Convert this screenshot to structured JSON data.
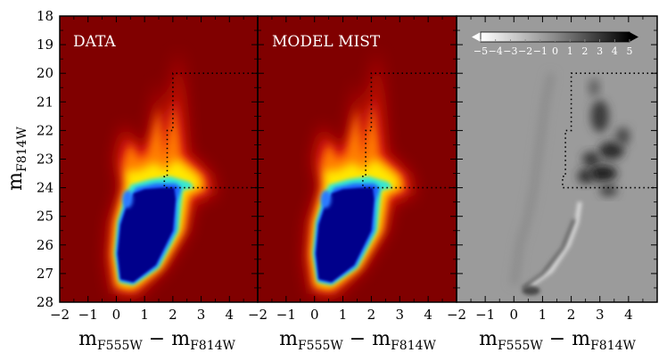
{
  "chart_data": {
    "type": "heatmap",
    "panels": [
      {
        "id": "data",
        "label": "DATA",
        "colormap": "jet"
      },
      {
        "id": "model",
        "label": "MODEL MIST",
        "colormap": "jet"
      },
      {
        "id": "residual",
        "label": "",
        "colormap": "gray_r"
      }
    ],
    "xlabel": {
      "main": "m",
      "sub": "F555W",
      "minus": "−",
      "main2": "m",
      "sub2": "F814W"
    },
    "ylabel": {
      "main": "m",
      "sub": "F814W"
    },
    "xlim": [
      -2,
      5
    ],
    "ylim": [
      28,
      18
    ],
    "xticks": [
      -2,
      -1,
      0,
      1,
      2,
      3,
      4
    ],
    "xtick_labels": [
      "−2",
      "−1",
      "0",
      "1",
      "2",
      "3",
      "4"
    ],
    "yticks": [
      18,
      19,
      20,
      21,
      22,
      23,
      24,
      25,
      26,
      27,
      28
    ],
    "ytick_labels": [
      "18",
      "19",
      "20",
      "21",
      "22",
      "23",
      "24",
      "25",
      "26",
      "27",
      "28"
    ],
    "colorbar": {
      "ticks": [
        -5,
        -4,
        -3,
        -2,
        -1,
        0,
        1,
        2,
        3,
        4,
        5
      ],
      "tick_labels": [
        "−5",
        "−4",
        "−3",
        "−2",
        "−1",
        "0",
        "1",
        "2",
        "3",
        "4",
        "5"
      ],
      "range": [
        -5,
        5
      ]
    },
    "region_boundary": [
      [
        5,
        20
      ],
      [
        2.0,
        20
      ],
      [
        2.0,
        22.0
      ],
      [
        1.8,
        22.0
      ],
      [
        1.8,
        23.6
      ],
      [
        1.7,
        23.6
      ],
      [
        1.7,
        24.0
      ],
      [
        5,
        24.0
      ]
    ],
    "colors": {
      "jet_background": "#800000",
      "jet_core": "#00008b",
      "residual_background": "#9b9b9b"
    }
  }
}
